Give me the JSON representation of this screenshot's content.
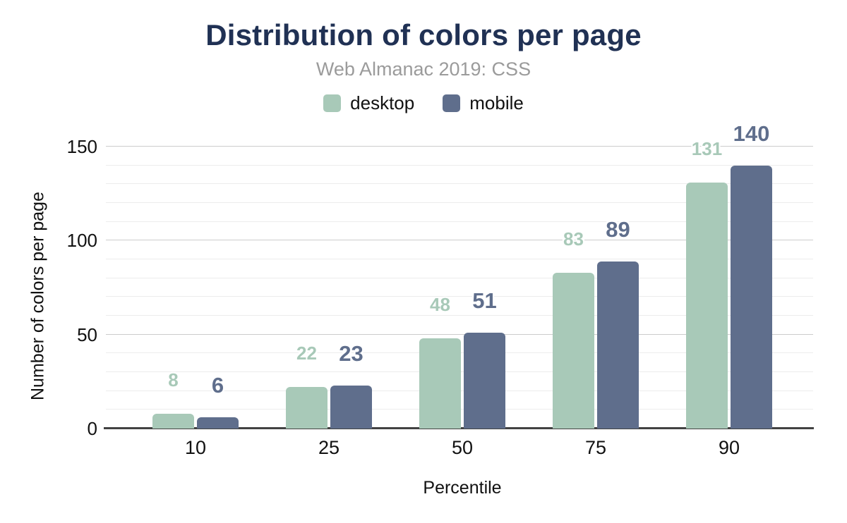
{
  "header": {
    "title": "Distribution of colors per page",
    "subtitle": "Web Almanac 2019: CSS"
  },
  "chart_data": {
    "type": "bar",
    "title": "Distribution of colors per page",
    "subtitle": "Web Almanac 2019: CSS",
    "categories": [
      "10",
      "25",
      "50",
      "75",
      "90"
    ],
    "series": [
      {
        "name": "desktop",
        "color": "#a8c9b8",
        "values": [
          8,
          22,
          48,
          83,
          131
        ]
      },
      {
        "name": "mobile",
        "color": "#5f6e8c",
        "values": [
          6,
          23,
          51,
          89,
          140
        ]
      }
    ],
    "xlabel": "Percentile",
    "ylabel": "Number of colors per page",
    "ylim": [
      0,
      150
    ],
    "yticks": [
      0,
      50,
      100,
      150
    ],
    "minor_gridline_step": 10,
    "legend_position": "top",
    "grid": true,
    "colors": {
      "title": "#203154",
      "subtitle": "#9b9b9b",
      "axis_text": "#111111",
      "gridline_major": "#cccccc",
      "gridline_minor": "#ececec",
      "baseline": "#424242",
      "background": "#ffffff"
    }
  }
}
